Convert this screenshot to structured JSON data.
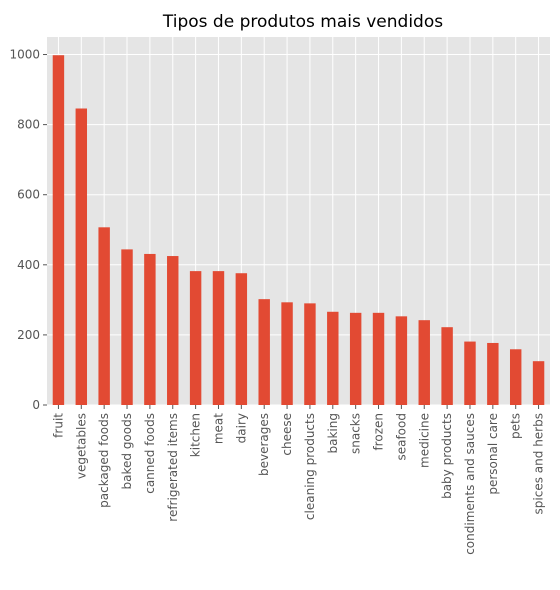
{
  "chart_data": {
    "type": "bar",
    "title": "Tipos de produtos mais vendidos",
    "xlabel": "",
    "ylabel": "",
    "ylim": [
      0,
      1050
    ],
    "yticks": [
      0,
      200,
      400,
      600,
      800,
      1000
    ],
    "grid": true,
    "legend": "none",
    "bar_color": "#E24A33",
    "background_color": "#E5E5E5",
    "grid_color": "#FFFFFF",
    "categories": [
      "fruit",
      "vegetables",
      "packaged foods",
      "baked goods",
      "canned foods",
      "refrigerated items",
      "kitchen",
      "meat",
      "dairy",
      "beverages",
      "cheese",
      "cleaning products",
      "baking",
      "snacks",
      "frozen",
      "seafood",
      "medicine",
      "baby products",
      "condiments and sauces",
      "personal care",
      "pets",
      "spices and herbs"
    ],
    "values": [
      998,
      846,
      507,
      444,
      431,
      425,
      382,
      382,
      376,
      302,
      293,
      290,
      266,
      263,
      263,
      253,
      242,
      222,
      181,
      177,
      159,
      125
    ]
  }
}
